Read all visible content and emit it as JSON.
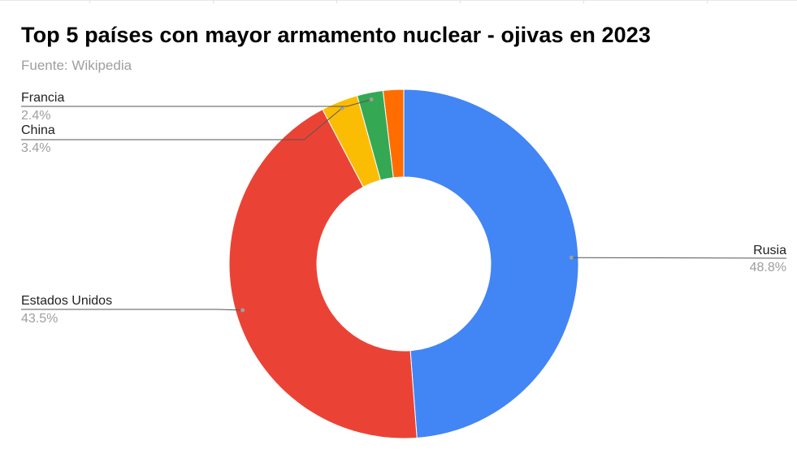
{
  "chart_data": {
    "type": "pie",
    "donut": true,
    "title": "Top 5 países con mayor armamento nuclear - ojivas en 2023",
    "subtitle": "Fuente: Wikipedia",
    "slices": [
      {
        "name": "Rusia",
        "value": 48.8,
        "label": "48.8%",
        "color": "#4285f4"
      },
      {
        "name": "Estados Unidos",
        "value": 43.5,
        "label": "43.5%",
        "color": "#ea4335"
      },
      {
        "name": "China",
        "value": 3.4,
        "label": "3.4%",
        "color": "#fbbc04"
      },
      {
        "name": "Francia",
        "value": 2.4,
        "label": "2.4%",
        "color": "#34a853"
      },
      {
        "name": "",
        "value": 1.9,
        "label": "",
        "color": "#ff6d01"
      }
    ],
    "legend_position": "labeled"
  }
}
